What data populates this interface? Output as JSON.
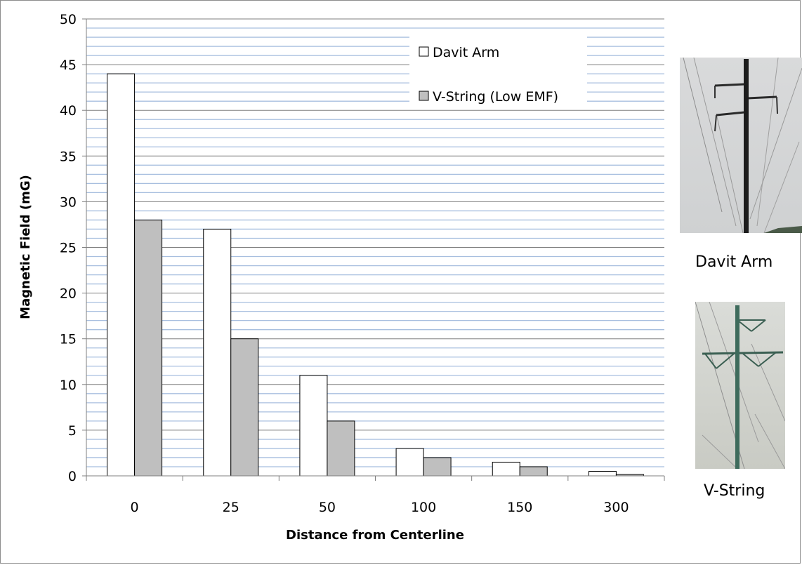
{
  "chart_data": {
    "type": "bar",
    "categories": [
      "0",
      "25",
      "50",
      "100",
      "150",
      "300"
    ],
    "series": [
      {
        "name": "Davit Arm",
        "values": [
          44,
          27,
          11,
          3,
          1.5,
          0.5
        ],
        "color": "#ffffff"
      },
      {
        "name": "V-String (Low EMF)",
        "values": [
          28,
          15,
          6,
          2,
          1,
          0.15
        ],
        "color": "#bfbfbf"
      }
    ],
    "xlabel": "Distance from Centerline",
    "ylabel": "Magnetic Field (mG)",
    "ylim": [
      0,
      50
    ],
    "yticks": [
      0,
      5,
      10,
      15,
      20,
      25,
      30,
      35,
      40,
      45,
      50
    ],
    "grid": true,
    "legend_position": "top-right"
  },
  "photos": {
    "davit_caption": "Davit Arm",
    "vstring_caption": "V-String"
  }
}
